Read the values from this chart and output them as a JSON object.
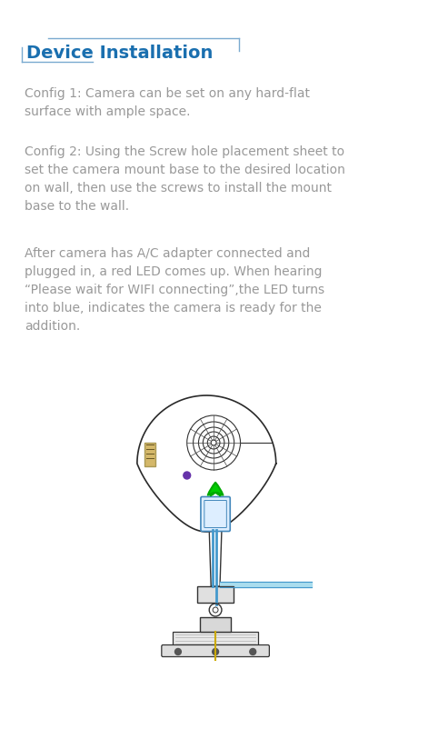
{
  "title": "Device Installation",
  "title_color": "#1a6faf",
  "title_fontsize": 14,
  "bg_color": "#ffffff",
  "text_color": "#999999",
  "text_fontsize": 10.0,
  "para1": "Config 1: Camera can be set on any hard-flat\nsurface with ample space.",
  "para2": "Config 2: Using the Screw hole placement sheet to\nset the camera mount base to the desired location\non wall, then use the screws to install the mount\nbase to the wall.",
  "para3": "After camera has A/C adapter connected and\nplugged in, a red LED comes up. When hearing\n“Please wait for WIFI connecting”,the LED turns\ninto blue, indicates the camera is ready for the\naddition."
}
